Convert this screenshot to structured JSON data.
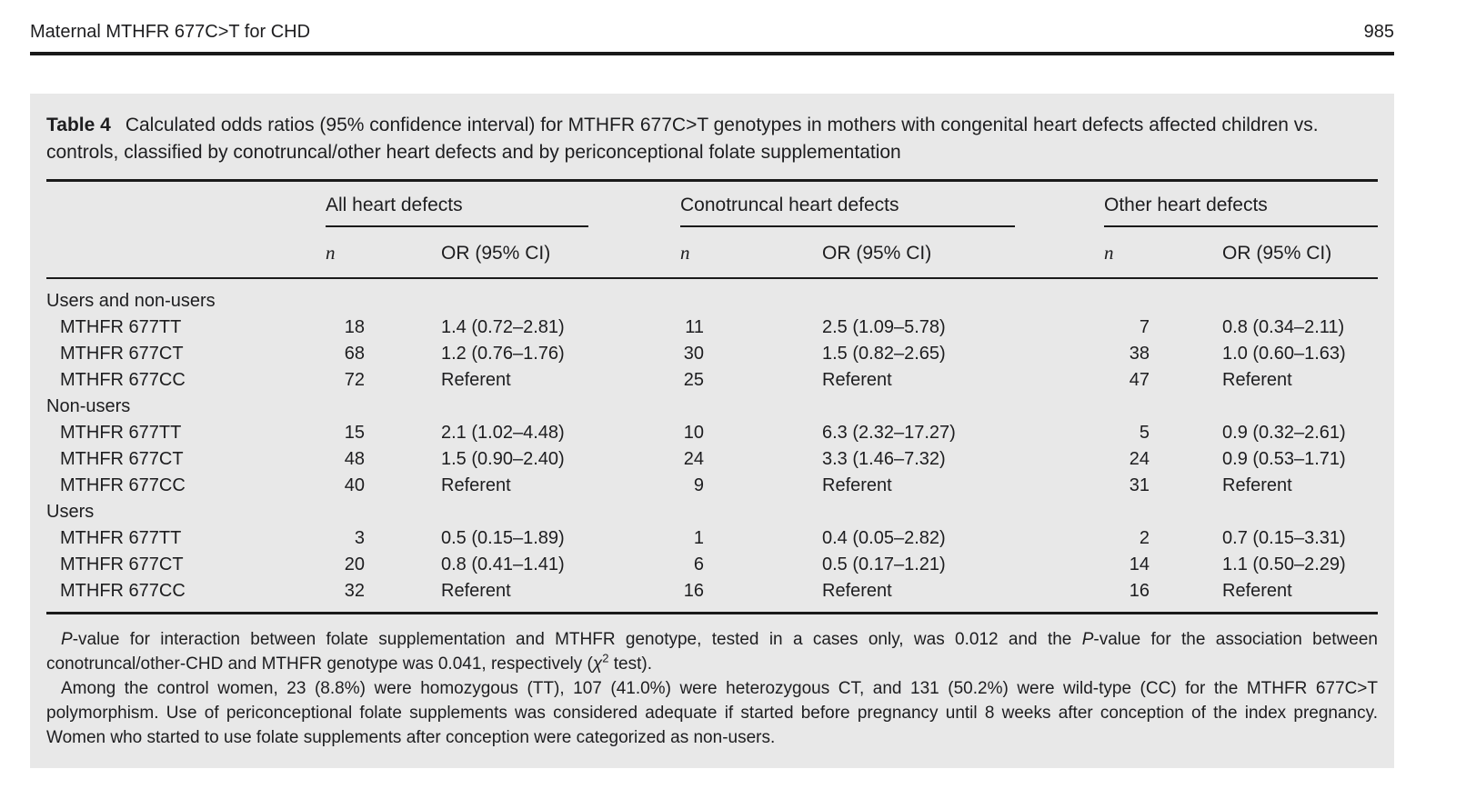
{
  "header": {
    "running_title": "Maternal MTHFR 677C>T for CHD",
    "page_number": "985"
  },
  "caption": {
    "label": "Table 4",
    "text": "Calculated odds ratios (95% confidence interval) for MTHFR 677C>T genotypes in mothers with congenital heart defects affected children vs. controls, classified by conotruncal/other heart defects and by periconceptional folate supplementation"
  },
  "table": {
    "column_groups": [
      {
        "label": "All heart defects"
      },
      {
        "label": "Conotruncal heart defects"
      },
      {
        "label": "Other heart defects"
      }
    ],
    "subheaders": {
      "n": "n",
      "or": "OR (95% CI)"
    },
    "sections": [
      {
        "label": "Users and non-users",
        "rows": [
          {
            "genotype": "MTHFR 677TT",
            "all_n": "18",
            "all_or": "1.4 (0.72–2.81)",
            "cono_n": "11",
            "cono_or": "2.5 (1.09–5.78)",
            "other_n": "7",
            "other_or": "0.8 (0.34–2.11)"
          },
          {
            "genotype": "MTHFR 677CT",
            "all_n": "68",
            "all_or": "1.2 (0.76–1.76)",
            "cono_n": "30",
            "cono_or": "1.5 (0.82–2.65)",
            "other_n": "38",
            "other_or": "1.0 (0.60–1.63)"
          },
          {
            "genotype": "MTHFR 677CC",
            "all_n": "72",
            "all_or": "Referent",
            "cono_n": "25",
            "cono_or": "Referent",
            "other_n": "47",
            "other_or": "Referent"
          }
        ]
      },
      {
        "label": "Non-users",
        "rows": [
          {
            "genotype": "MTHFR 677TT",
            "all_n": "15",
            "all_or": "2.1 (1.02–4.48)",
            "cono_n": "10",
            "cono_or": "6.3 (2.32–17.27)",
            "other_n": "5",
            "other_or": "0.9 (0.32–2.61)"
          },
          {
            "genotype": "MTHFR 677CT",
            "all_n": "48",
            "all_or": "1.5 (0.90–2.40)",
            "cono_n": "24",
            "cono_or": "3.3 (1.46–7.32)",
            "other_n": "24",
            "other_or": "0.9 (0.53–1.71)"
          },
          {
            "genotype": "MTHFR 677CC",
            "all_n": "40",
            "all_or": "Referent",
            "cono_n": "9",
            "cono_or": "Referent",
            "other_n": "31",
            "other_or": "Referent"
          }
        ]
      },
      {
        "label": "Users",
        "rows": [
          {
            "genotype": "MTHFR 677TT",
            "all_n": "3",
            "all_or": "0.5 (0.15–1.89)",
            "cono_n": "1",
            "cono_or": "0.4 (0.05–2.82)",
            "other_n": "2",
            "other_or": "0.7 (0.15–3.31)"
          },
          {
            "genotype": "MTHFR 677CT",
            "all_n": "20",
            "all_or": "0.8 (0.41–1.41)",
            "cono_n": "6",
            "cono_or": "0.5 (0.17–1.21)",
            "other_n": "14",
            "other_or": "1.1 (0.50–2.29)"
          },
          {
            "genotype": "MTHFR 677CC",
            "all_n": "32",
            "all_or": "Referent",
            "cono_n": "16",
            "cono_or": "Referent",
            "other_n": "16",
            "other_or": "Referent"
          }
        ]
      }
    ]
  },
  "footnotes": {
    "f1": {
      "i1": "P",
      "t1": "-value for interaction between folate supplementation and MTHFR genotype, tested in a cases only, was 0.012 and the ",
      "i2": "P",
      "t2": "-value for the association between conotruncal/other-CHD and MTHFR genotype was 0.041, respectively (",
      "chi": "χ",
      "chi_sup": "2",
      "t3": " test)."
    },
    "f2": "Among the control women, 23 (8.8%) were homozygous (TT), 107 (41.0%) were heterozygous CT, and 131 (50.2%) were wild-type (CC) for the MTHFR 677C>T polymorphism. Use of periconceptional folate supplements was considered adequate if started before pregnancy until 8 weeks after conception of the index pregnancy. Women who started to use folate supplements after conception were categorized as non-users."
  },
  "colors": {
    "panel_background": "#e8e8e8",
    "rule": "#1a1a1a",
    "text": "#1d1d1f"
  }
}
